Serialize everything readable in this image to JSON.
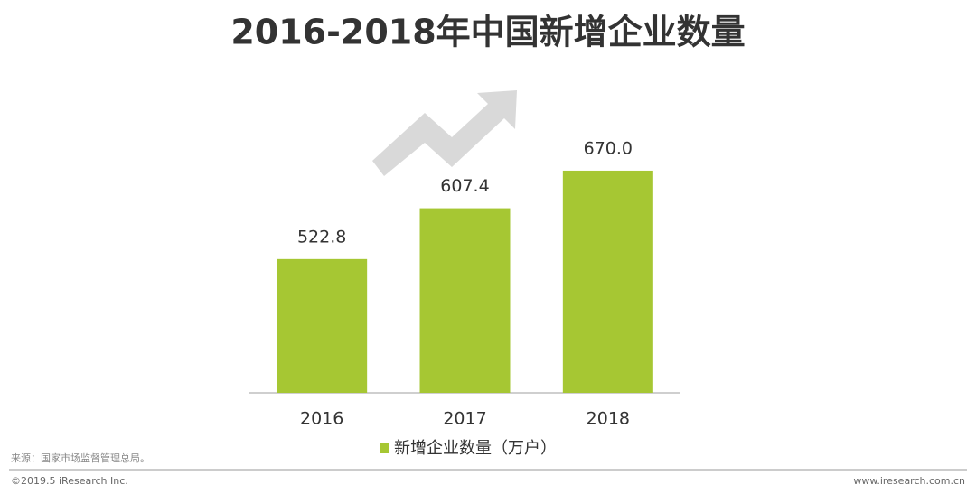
{
  "chart_data": {
    "type": "bar",
    "title": "2016-2018年中国新增企业数量",
    "categories": [
      "2016",
      "2017",
      "2018"
    ],
    "series": [
      {
        "name": "新增企业数量（万户）",
        "color": "#a6c733",
        "values": [
          522.8,
          607.4,
          670.0
        ],
        "value_labels": [
          "522.8",
          "607.4",
          "670.0"
        ]
      }
    ],
    "ylim": [
      300,
      700
    ],
    "source": "来源：国家市场监督管理总局。",
    "copyright": "©2019.5 iResearch Inc.",
    "website": "www.iresearch.com.cn"
  }
}
